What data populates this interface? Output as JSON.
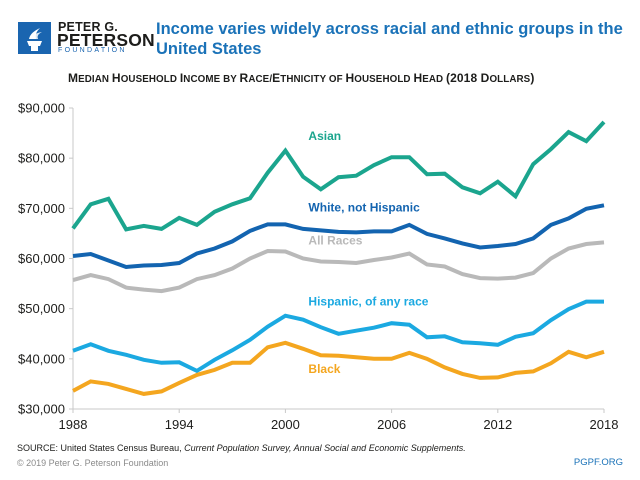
{
  "brand": {
    "line1": "PETER G.",
    "line2": "PETERSON",
    "line3": "FOUNDATION",
    "icon": "torch-icon",
    "color": "#1a65b0"
  },
  "headline": "Income varies widely across racial and ethnic groups in the United States",
  "footer": {
    "source_prefix": "SOURCE: United States Census Bureau, ",
    "source_italic": "Current Population Survey, Annual Social and Economic Supplements.",
    "copyright": "© 2019 Peter G. Peterson Foundation",
    "site": "PGPF.ORG"
  },
  "chart_data": {
    "type": "line",
    "title": "Median Household Income by Race/Ethnicity of Household Head (2018 Dollars)",
    "title_display": [
      {
        "text": "M",
        "big": true
      },
      {
        "text": "EDIAN ",
        "big": false
      },
      {
        "text": "H",
        "big": true
      },
      {
        "text": "OUSEHOLD ",
        "big": false
      },
      {
        "text": "I",
        "big": true
      },
      {
        "text": "NCOME BY ",
        "big": false
      },
      {
        "text": "R",
        "big": true
      },
      {
        "text": "ACE/",
        "big": false
      },
      {
        "text": "E",
        "big": true
      },
      {
        "text": "THNICITY OF ",
        "big": false
      },
      {
        "text": "H",
        "big": true
      },
      {
        "text": "OUSEHOLD ",
        "big": false
      },
      {
        "text": "H",
        "big": true
      },
      {
        "text": "EAD ",
        "big": false
      },
      {
        "text": "(2018 D",
        "big": true
      },
      {
        "text": "OLLARS",
        "big": false
      },
      {
        "text": ")",
        "big": true
      }
    ],
    "xlabel": "",
    "ylabel": "",
    "x": [
      1988,
      1989,
      1990,
      1991,
      1992,
      1993,
      1994,
      1995,
      1996,
      1997,
      1998,
      1999,
      2000,
      2001,
      2002,
      2003,
      2004,
      2005,
      2006,
      2007,
      2008,
      2009,
      2010,
      2011,
      2012,
      2013,
      2014,
      2015,
      2016,
      2017,
      2018
    ],
    "xlim": [
      1988,
      2018
    ],
    "ylim": [
      30000,
      90000
    ],
    "x_ticks": [
      1988,
      1994,
      2000,
      2006,
      2012,
      2018
    ],
    "x_tick_labels": [
      "1988",
      "1994",
      "2000",
      "2006",
      "2012",
      "2018"
    ],
    "y_ticks": [
      30000,
      40000,
      50000,
      60000,
      70000,
      80000,
      90000
    ],
    "y_tick_labels": [
      "$30,000",
      "$40,000",
      "$50,000",
      "$60,000",
      "$70,000",
      "$80,000",
      "$90,000"
    ],
    "grid": false,
    "legend": "inline labels",
    "series": [
      {
        "name": "Asian",
        "color": "#1ba58e",
        "label_anchor_year": 2001.3,
        "label_anchor_value": 83600,
        "values": [
          66000,
          70800,
          71900,
          65800,
          66500,
          65900,
          68100,
          66700,
          69300,
          70800,
          72000,
          77100,
          81500,
          76300,
          73800,
          76200,
          76500,
          78600,
          80200,
          80200,
          76800,
          76900,
          74200,
          73000,
          75300,
          72400,
          78800,
          81800,
          85200,
          83400,
          87200
        ]
      },
      {
        "name": "White, not Hispanic",
        "color": "#1364b0",
        "label_anchor_year": 2001.3,
        "label_anchor_value": 69400,
        "values": [
          60500,
          60900,
          59600,
          58300,
          58600,
          58700,
          59100,
          61000,
          62000,
          63400,
          65500,
          66800,
          66800,
          65900,
          65600,
          65300,
          65200,
          65400,
          65400,
          66700,
          64900,
          64000,
          63000,
          62200,
          62500,
          62900,
          64000,
          66700,
          68000,
          69900,
          70600
        ]
      },
      {
        "name": "All Races",
        "color": "#b9b9b9",
        "label_anchor_year": 2001.3,
        "label_anchor_value": 62800,
        "values": [
          55700,
          56700,
          55900,
          54200,
          53800,
          53500,
          54200,
          55900,
          56700,
          58000,
          60000,
          61500,
          61400,
          60000,
          59400,
          59300,
          59100,
          59700,
          60200,
          61000,
          58800,
          58400,
          56900,
          56100,
          56000,
          56200,
          57100,
          60000,
          62000,
          62900,
          63200
        ]
      },
      {
        "name": "Hispanic, of any race",
        "color": "#1ba9e1",
        "label_anchor_year": 2001.3,
        "label_anchor_value": 50600,
        "values": [
          41600,
          42900,
          41600,
          40800,
          39800,
          39200,
          39300,
          37600,
          39800,
          41700,
          43800,
          46400,
          48600,
          47800,
          46300,
          45000,
          45600,
          46200,
          47100,
          46800,
          44300,
          44500,
          43300,
          43100,
          42800,
          44400,
          45100,
          47700,
          49900,
          51400,
          51400
        ]
      },
      {
        "name": "Black",
        "color": "#f4a61f",
        "label_anchor_year": 2001.3,
        "label_anchor_value": 37200,
        "values": [
          33600,
          35500,
          35000,
          34000,
          33000,
          33500,
          35200,
          36800,
          37800,
          39200,
          39200,
          42300,
          43200,
          42000,
          40700,
          40600,
          40300,
          40000,
          40000,
          41200,
          40000,
          38300,
          37000,
          36200,
          36300,
          37200,
          37500,
          39100,
          41400,
          40300,
          41400
        ]
      }
    ]
  }
}
